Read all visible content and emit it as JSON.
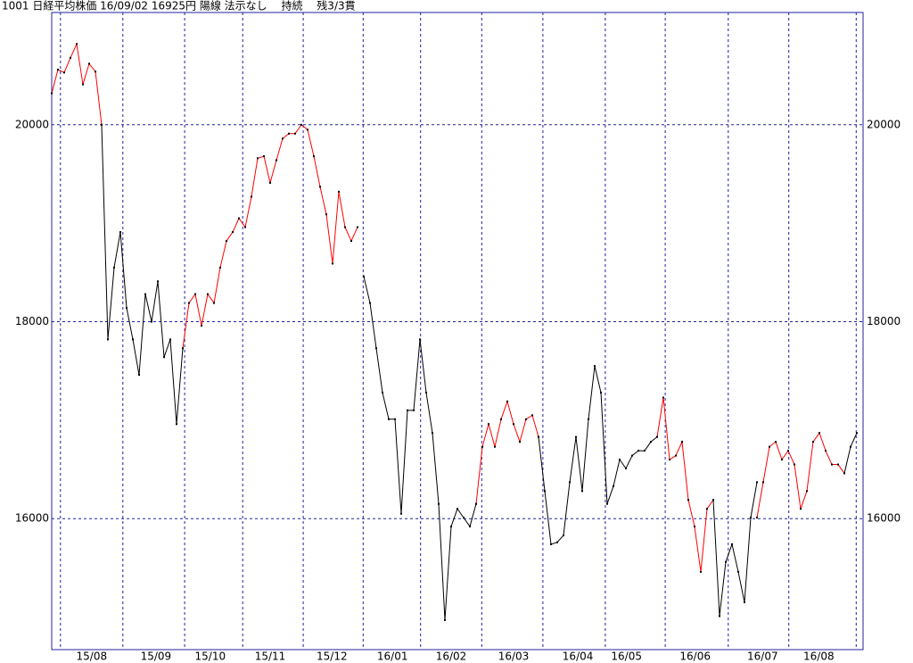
{
  "chart_data": {
    "type": "line",
    "title": "1001 日経平均株価 16/09/02 16925円 陽線 法示なし　 持続　 残3/3貫",
    "series": [
      {
        "color": "#ff0000",
        "values": [
          20320,
          20560,
          20530,
          20680,
          20820,
          20410,
          20620,
          20540,
          20000,
          null,
          null,
          null,
          null,
          null,
          null,
          null,
          null,
          null,
          null,
          null,
          null,
          17730,
          18190,
          18280,
          17960,
          18280,
          18190,
          18550,
          18820,
          18910,
          19050,
          18960,
          19270,
          19660,
          19680,
          19410,
          19640,
          19860,
          19910,
          19910,
          20000,
          19950,
          19680,
          19370,
          19090,
          18590,
          19320,
          18960,
          18820,
          18960,
          null,
          null,
          null,
          null,
          null,
          null,
          null,
          null,
          null,
          null,
          null,
          null,
          null,
          null,
          null,
          null,
          null,
          null,
          16150,
          16730,
          16960,
          16730,
          17010,
          17190,
          16960,
          16780,
          17010,
          17050,
          16830,
          null,
          null,
          null,
          null,
          null,
          null,
          null,
          null,
          null,
          null,
          null,
          null,
          null,
          null,
          null,
          null,
          null,
          null,
          16830,
          17230,
          16600,
          16640,
          16780,
          16190,
          15920,
          15460,
          16100,
          16190,
          null,
          null,
          null,
          null,
          null,
          null,
          16010,
          16370,
          16730,
          16780,
          16600,
          16690,
          16550,
          16100,
          16280,
          16780,
          16870,
          16690,
          16550,
          16550,
          16460,
          null,
          null
        ]
      },
      {
        "color": "#000000",
        "values": [
          null,
          null,
          null,
          null,
          null,
          null,
          null,
          null,
          20000,
          17820,
          18550,
          18910,
          18140,
          17820,
          17460,
          18280,
          18000,
          18410,
          17640,
          17820,
          16960,
          17730,
          null,
          null,
          null,
          null,
          null,
          null,
          null,
          null,
          null,
          null,
          null,
          null,
          null,
          null,
          null,
          null,
          null,
          null,
          null,
          null,
          null,
          null,
          null,
          null,
          null,
          null,
          null,
          null,
          18460,
          18190,
          17730,
          17280,
          17010,
          17010,
          16050,
          17100,
          17100,
          17820,
          17280,
          16870,
          16150,
          14970,
          15920,
          16100,
          16010,
          15920,
          16150,
          null,
          null,
          null,
          null,
          null,
          null,
          null,
          null,
          null,
          16830,
          16280,
          15740,
          15760,
          15830,
          16370,
          16830,
          16280,
          17010,
          17550,
          17280,
          16150,
          16330,
          16600,
          16510,
          16640,
          16690,
          16690,
          16780,
          16830,
          null,
          null,
          null,
          null,
          null,
          null,
          null,
          null,
          16190,
          15010,
          15560,
          15740,
          15460,
          15150,
          16010,
          16370,
          null,
          null,
          null,
          null,
          null,
          null,
          null,
          null,
          null,
          null,
          null,
          null,
          null,
          16460,
          16730,
          16870
        ]
      }
    ],
    "xlim": [
      0,
      130
    ],
    "xticks": [
      {
        "value": 6.4,
        "label": "15/08"
      },
      {
        "value": 16.7,
        "label": "15/09"
      },
      {
        "value": 25.4,
        "label": "15/10"
      },
      {
        "value": 35,
        "label": "15/11"
      },
      {
        "value": 44.9,
        "label": "15/12"
      },
      {
        "value": 54.6,
        "label": "16/01"
      },
      {
        "value": 64,
        "label": "16/02"
      },
      {
        "value": 74,
        "label": "16/03"
      },
      {
        "value": 84.3,
        "label": "16/04"
      },
      {
        "value": 92.1,
        "label": "16/05"
      },
      {
        "value": 103.1,
        "label": "16/06"
      },
      {
        "value": 113.9,
        "label": "16/07"
      },
      {
        "value": 122.9,
        "label": "16/08"
      }
    ],
    "xgrid": [
      1.4,
      11.4,
      21.3,
      30.6,
      40.3,
      49.9,
      59.1,
      68.9,
      78.7,
      88.7,
      98.3,
      108.4,
      118.1,
      128.9
    ],
    "ylim": [
      14670,
      21140
    ],
    "yticks": [
      16000,
      18000,
      20000
    ],
    "grid": true
  }
}
